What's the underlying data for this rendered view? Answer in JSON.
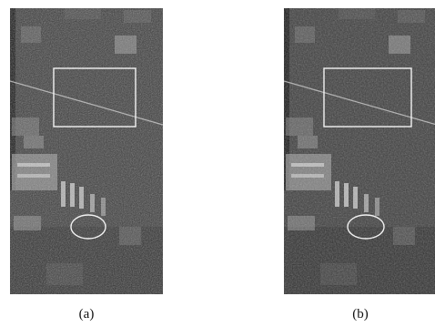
{
  "figure": {
    "panels": [
      {
        "caption": "(a)"
      },
      {
        "caption": "(b)"
      }
    ]
  },
  "colors": {
    "background": "#ffffff",
    "image_base": "#3a3a3a",
    "annotation": "#f2f2f2"
  }
}
